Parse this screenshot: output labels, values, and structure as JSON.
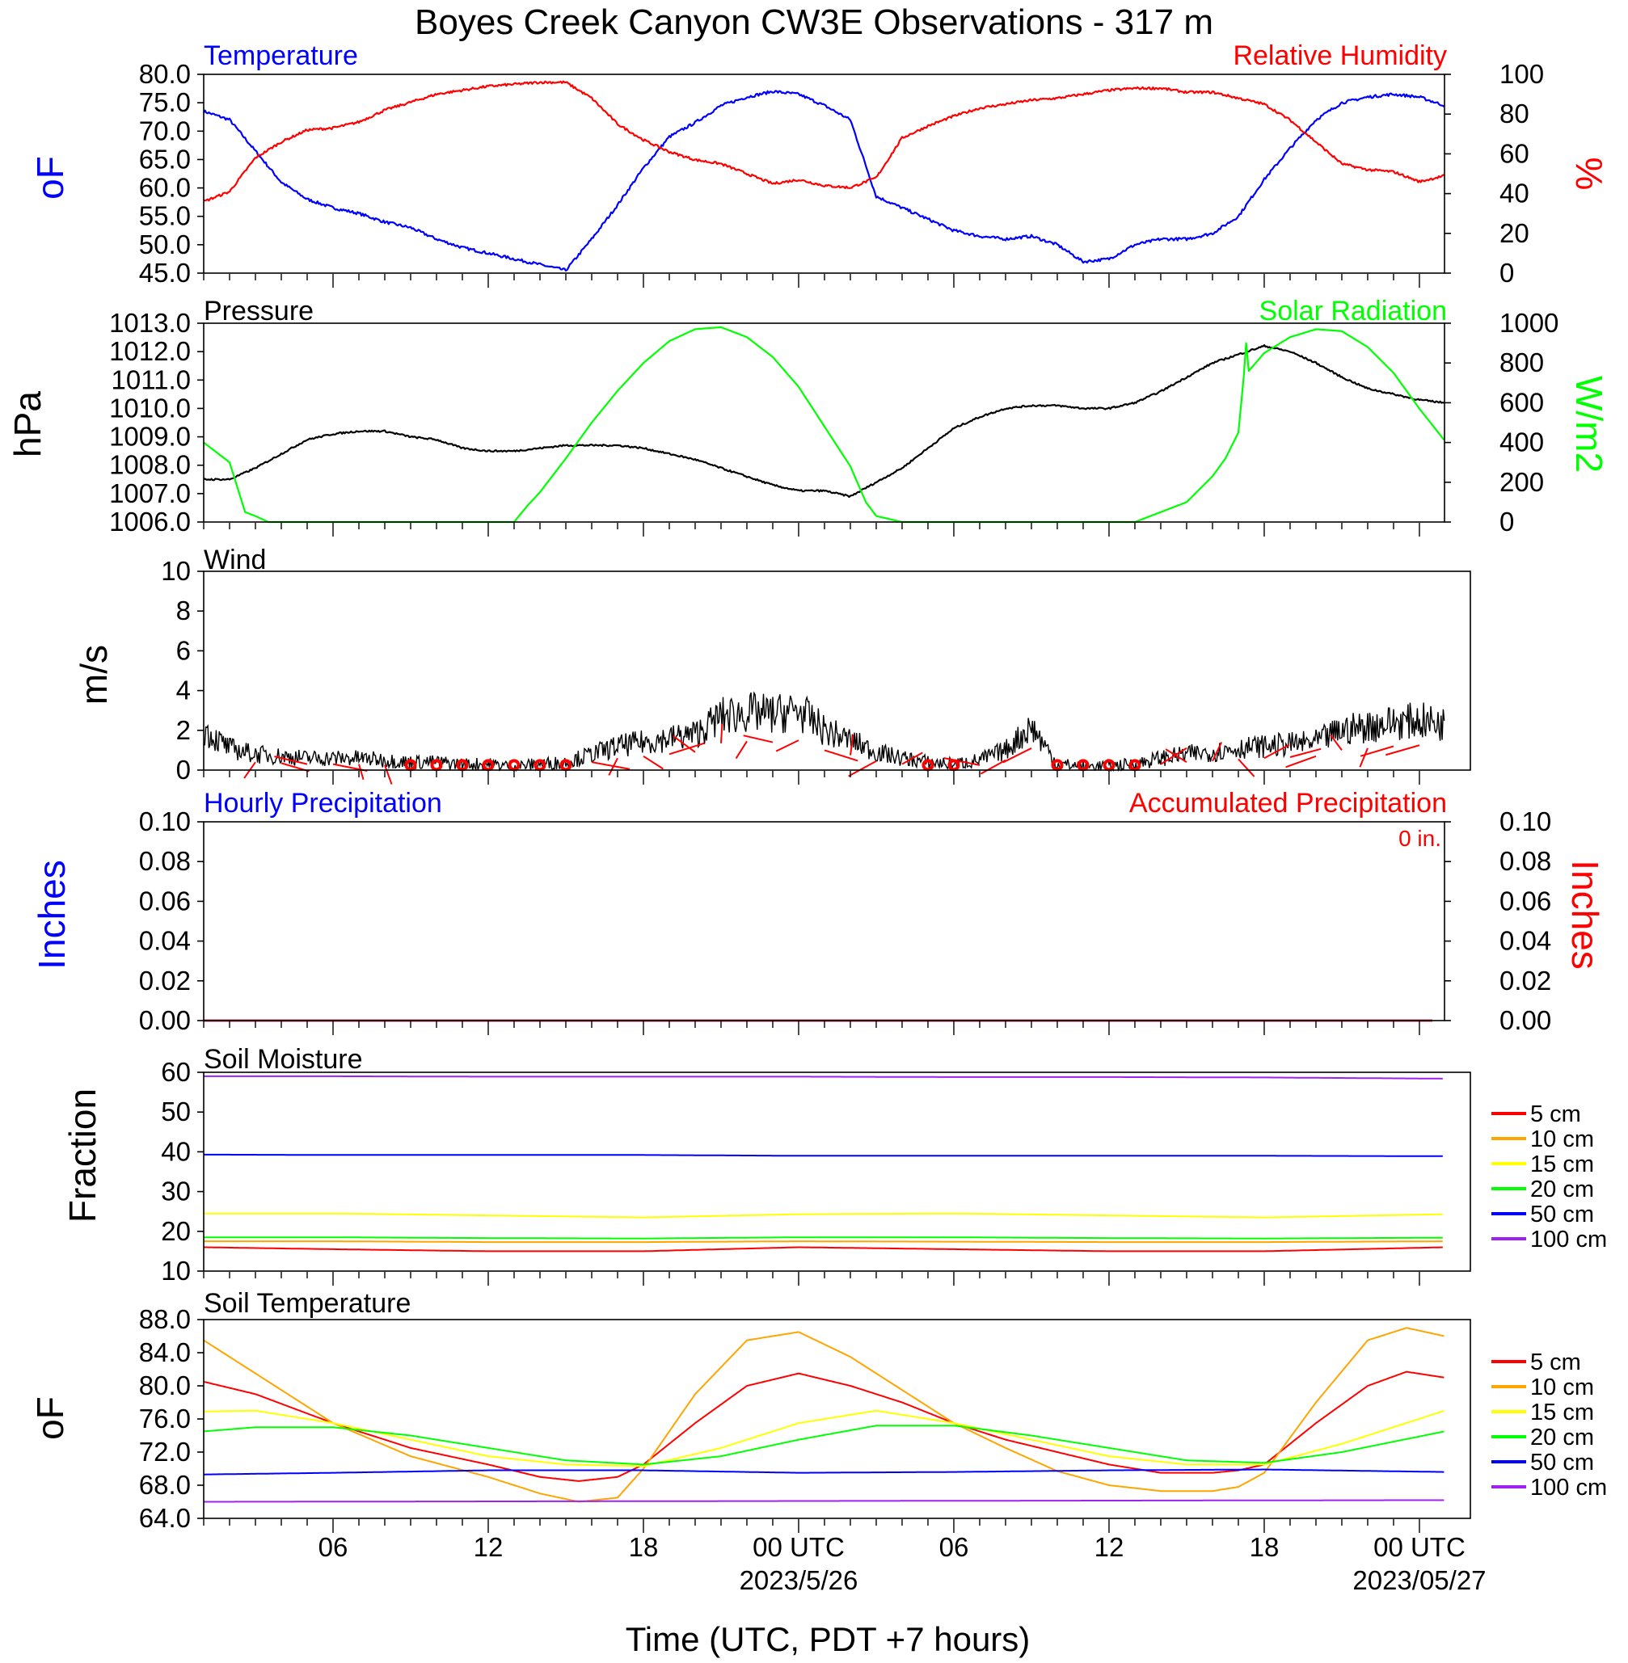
{
  "title": "Boyes Creek Canyon CW3E Observations - 317 m",
  "x_axis": {
    "label": "Time (UTC, PDT +7 hours)",
    "ticks": [
      {
        "hour": 6,
        "label": "06"
      },
      {
        "hour": 12,
        "label": "12"
      },
      {
        "hour": 18,
        "label": "18"
      },
      {
        "hour": 24,
        "label": "00 UTC"
      },
      {
        "hour": 30,
        "label": "06"
      },
      {
        "hour": 36,
        "label": "12"
      },
      {
        "hour": 42,
        "label": "18"
      },
      {
        "hour": 48,
        "label": "00 UTC"
      }
    ],
    "date_labels": [
      {
        "hour": 24,
        "label": "2023/5/26"
      },
      {
        "hour": 48,
        "label": "2023/05/27"
      }
    ],
    "range_hours": [
      1,
      48.97
    ]
  },
  "panels": {
    "temp_rh": {
      "left_title": "Temperature",
      "right_title": "Relative Humidity",
      "left_unit": "oF",
      "right_unit": "%",
      "left_ticks": [
        "80.0",
        "75.0",
        "70.0",
        "65.0",
        "60.0",
        "55.0",
        "50.0",
        "45.0"
      ],
      "right_ticks": [
        "100",
        "80",
        "60",
        "40",
        "20",
        "0"
      ]
    },
    "pressure_solar": {
      "left_title": "Pressure",
      "right_title": "Solar Radiation",
      "left_unit": "hPa",
      "right_unit": "W/m2",
      "left_ticks": [
        "1013.0",
        "1012.0",
        "1011.0",
        "1010.0",
        "1009.0",
        "1008.0",
        "1007.0",
        "1006.0"
      ],
      "right_ticks": [
        "1000",
        "800",
        "600",
        "400",
        "200",
        "0"
      ]
    },
    "wind": {
      "title": "Wind",
      "unit": "m/s",
      "ticks": [
        "10",
        "8",
        "6",
        "4",
        "2",
        "0"
      ]
    },
    "precip": {
      "left_title": "Hourly Precipitation",
      "right_title": "Accumulated Precipitation",
      "total": "0 in.",
      "left_unit": "Inches",
      "right_unit": "Inches",
      "ticks": [
        "0.10",
        "0.08",
        "0.06",
        "0.04",
        "0.02",
        "0.00"
      ]
    },
    "soil_moisture": {
      "title": "Soil Moisture",
      "unit": "Fraction",
      "ticks": [
        "60",
        "50",
        "40",
        "30",
        "20",
        "10"
      ],
      "legend": [
        "5 cm",
        "10 cm",
        "15 cm",
        "20 cm",
        "50 cm",
        "100 cm"
      ]
    },
    "soil_temp": {
      "title": "Soil Temperature",
      "unit": "oF",
      "ticks": [
        "88.0",
        "84.0",
        "80.0",
        "76.0",
        "72.0",
        "68.0",
        "64.0"
      ],
      "legend": [
        "5 cm",
        "10 cm",
        "15 cm",
        "20 cm",
        "50 cm",
        "100 cm"
      ]
    }
  },
  "colors": {
    "temperature": "#0000ff",
    "relative_humidity": "#ff0000",
    "pressure": "#000000",
    "solar": "#00ff00",
    "wind": "#000000",
    "wind_barbs": "#ff0000",
    "hourly_precip": "#0000ff",
    "accum_precip": "#ff0000",
    "depths": [
      "#ff0000",
      "#ffa500",
      "#ffff00",
      "#00ff00",
      "#0000ff",
      "#a020f0"
    ]
  },
  "chart_data": [
    {
      "type": "line",
      "title": "Temperature",
      "ylabel": "oF",
      "ylim": [
        45,
        80
      ],
      "x_unit": "hours from 2023/5/25 00 UTC",
      "series": [
        {
          "name": "Temperature",
          "x": [
            1,
            2,
            3,
            4,
            5,
            6,
            7,
            8,
            9,
            10,
            11,
            12,
            13,
            14,
            15,
            16,
            17,
            18,
            19,
            20,
            21,
            22,
            23,
            24,
            25,
            26,
            27,
            28,
            29,
            30,
            31,
            32,
            33,
            34,
            35,
            36,
            37,
            38,
            39,
            40,
            41,
            42,
            43,
            44,
            45,
            46,
            47,
            48,
            48.97
          ],
          "values": [
            73.5,
            72,
            66.5,
            61,
            58,
            56.5,
            55.5,
            54,
            53,
            51,
            49.5,
            48.5,
            47.5,
            46.5,
            45.5,
            51,
            57,
            63.5,
            69,
            71.5,
            74.5,
            76,
            77,
            76.5,
            74.5,
            72,
            58.5,
            56.5,
            54.5,
            52.5,
            51.5,
            51,
            51.5,
            50,
            47,
            47.5,
            50,
            51,
            51,
            52,
            55,
            61.5,
            67,
            72,
            75,
            76,
            76.5,
            76,
            74.5
          ]
        }
      ]
    },
    {
      "type": "line",
      "title": "Relative Humidity",
      "ylabel": "%",
      "ylim": [
        0,
        100
      ],
      "series": [
        {
          "name": "Relative Humidity",
          "x": [
            1,
            2,
            3,
            4,
            5,
            6,
            7,
            8,
            9,
            10,
            11,
            12,
            13,
            14,
            15,
            16,
            17,
            18,
            19,
            20,
            21,
            22,
            23,
            24,
            25,
            26,
            27,
            28,
            29,
            30,
            31,
            32,
            33,
            34,
            35,
            36,
            37,
            38,
            39,
            40,
            41,
            42,
            43,
            44,
            45,
            46,
            47,
            48,
            48.97
          ],
          "values": [
            36,
            41,
            58,
            66,
            72,
            73,
            76,
            82,
            86,
            90,
            92,
            94,
            95,
            96,
            96,
            88,
            75,
            67,
            61,
            57,
            55,
            50,
            45,
            47,
            44,
            43,
            48,
            68,
            74,
            79,
            83,
            85,
            87,
            88,
            90,
            92,
            93,
            93,
            91,
            91,
            88,
            85,
            77,
            66,
            55,
            52,
            51,
            46,
            49
          ]
        }
      ]
    },
    {
      "type": "line",
      "title": "Pressure",
      "ylabel": "hPa",
      "ylim": [
        1006,
        1013
      ],
      "series": [
        {
          "name": "Pressure",
          "x": [
            1,
            2,
            3,
            4,
            5,
            6,
            7,
            8,
            9,
            10,
            11,
            12,
            13,
            14,
            15,
            16,
            17,
            18,
            19,
            20,
            21,
            22,
            23,
            24,
            25,
            26,
            27,
            28,
            29,
            30,
            31,
            32,
            33,
            34,
            35,
            36,
            37,
            38,
            39,
            40,
            41,
            42,
            43,
            44,
            45,
            46,
            47,
            48,
            48.97
          ],
          "values": [
            1007.5,
            1007.5,
            1007.9,
            1008.4,
            1008.9,
            1009.1,
            1009.2,
            1009.2,
            1009.0,
            1008.9,
            1008.6,
            1008.5,
            1008.5,
            1008.6,
            1008.7,
            1008.7,
            1008.7,
            1008.6,
            1008.4,
            1008.2,
            1007.9,
            1007.6,
            1007.3,
            1007.1,
            1007.1,
            1006.9,
            1007.4,
            1007.9,
            1008.6,
            1009.3,
            1009.7,
            1010.0,
            1010.1,
            1010.1,
            1010.0,
            1010.0,
            1010.2,
            1010.6,
            1011.1,
            1011.6,
            1011.9,
            1012.2,
            1012.0,
            1011.6,
            1011.1,
            1010.7,
            1010.5,
            1010.3,
            1010.2
          ]
        }
      ]
    },
    {
      "type": "line",
      "title": "Solar Radiation",
      "ylabel": "W/m2",
      "ylim": [
        0,
        1000
      ],
      "series": [
        {
          "name": "Solar Radiation",
          "x": [
            1,
            2,
            2.6,
            3,
            3.5,
            4,
            12,
            13,
            13.5,
            14,
            15,
            16,
            17,
            18,
            19,
            20,
            21,
            22,
            23,
            24,
            25,
            26,
            26.6,
            27,
            28,
            36,
            37,
            38,
            39,
            40,
            40.5,
            41,
            41.2,
            41.3,
            41.4,
            42,
            43,
            44,
            45,
            46,
            47,
            48,
            48.97
          ],
          "values": [
            400,
            300,
            50,
            30,
            0,
            0,
            0,
            0,
            80,
            150,
            320,
            500,
            660,
            800,
            910,
            970,
            980,
            930,
            830,
            680,
            480,
            280,
            100,
            30,
            0,
            0,
            0,
            50,
            100,
            230,
            320,
            450,
            720,
            900,
            760,
            850,
            930,
            970,
            960,
            880,
            750,
            570,
            410
          ]
        }
      ]
    },
    {
      "type": "line",
      "title": "Wind",
      "ylabel": "m/s",
      "ylim": [
        0,
        10
      ],
      "series": [
        {
          "name": "Wind",
          "x": [
            1,
            2,
            3,
            4,
            5,
            6,
            7,
            8,
            9,
            10,
            11,
            12,
            13,
            14,
            15,
            16,
            17,
            18,
            19,
            20,
            21,
            22,
            23,
            24,
            25,
            26,
            27,
            28,
            29,
            30,
            31,
            32,
            33,
            34,
            35,
            36,
            37,
            38,
            39,
            40,
            41,
            42,
            43,
            44,
            45,
            46,
            47,
            48,
            48.97
          ],
          "values": [
            2,
            1.1,
            0.8,
            0.7,
            0.6,
            0.6,
            0.6,
            0.5,
            0.4,
            0.4,
            0.3,
            0.3,
            0.2,
            0.3,
            0.4,
            0.8,
            1.2,
            1.4,
            1.6,
            1.8,
            2.7,
            2.9,
            2.8,
            3,
            2,
            1.5,
            0.9,
            0.6,
            0.4,
            0.3,
            0.5,
            1,
            2.2,
            0.3,
            0.2,
            0.2,
            0.3,
            0.6,
            0.8,
            0.9,
            1.1,
            1.2,
            1.3,
            1.4,
            2,
            2.2,
            2.4,
            2.5,
            2.3
          ]
        }
      ]
    },
    {
      "type": "line",
      "title": "Hourly Precipitation",
      "ylabel": "Inches",
      "ylim": [
        0,
        0.1
      ],
      "series": [
        {
          "name": "Hourly Precipitation",
          "x": [
            1,
            48.97
          ],
          "values": [
            0,
            0
          ]
        },
        {
          "name": "Accumulated Precipitation",
          "x": [
            1,
            48.97
          ],
          "values": [
            0,
            0
          ]
        }
      ]
    },
    {
      "type": "line",
      "title": "Soil Moisture",
      "ylabel": "Fraction",
      "ylim": [
        10,
        60
      ],
      "series": [
        {
          "name": "5 cm",
          "x": [
            1,
            6,
            12,
            18,
            24,
            30,
            36,
            42,
            48.97
          ],
          "values": [
            16,
            15.5,
            15,
            15,
            16,
            15.5,
            15,
            15,
            16
          ]
        },
        {
          "name": "10 cm",
          "x": [
            1,
            6,
            12,
            18,
            24,
            30,
            36,
            42,
            48.97
          ],
          "values": [
            17.5,
            17.5,
            17.3,
            17.3,
            17.5,
            17.4,
            17.3,
            17.3,
            17.5
          ]
        },
        {
          "name": "15 cm",
          "x": [
            1,
            6,
            12,
            18,
            24,
            30,
            36,
            42,
            48.97
          ],
          "values": [
            24.5,
            24.5,
            24,
            23.5,
            24.3,
            24.5,
            24,
            23.5,
            24.3
          ]
        },
        {
          "name": "20 cm",
          "x": [
            1,
            6,
            12,
            18,
            24,
            30,
            36,
            42,
            48.97
          ],
          "values": [
            18.5,
            18.5,
            18.3,
            18.2,
            18.5,
            18.5,
            18.3,
            18.2,
            18.4
          ]
        },
        {
          "name": "50 cm",
          "x": [
            1,
            6,
            12,
            18,
            24,
            30,
            36,
            42,
            48.97
          ],
          "values": [
            39.3,
            39.2,
            39.2,
            39.2,
            39,
            39,
            39,
            39,
            38.9
          ]
        },
        {
          "name": "100 cm",
          "x": [
            1,
            6,
            12,
            18,
            24,
            30,
            36,
            42,
            48.97
          ],
          "values": [
            59,
            59,
            58.9,
            58.9,
            58.9,
            58.8,
            58.8,
            58.7,
            58.4
          ]
        }
      ]
    },
    {
      "type": "line",
      "title": "Soil Temperature",
      "ylabel": "oF",
      "ylim": [
        64,
        88
      ],
      "series": [
        {
          "name": "5 cm",
          "x": [
            1,
            3,
            6,
            9,
            12,
            14,
            15.5,
            17,
            18,
            20,
            22,
            24,
            26,
            28,
            30,
            32,
            34,
            36,
            38,
            40,
            41,
            42,
            44,
            46,
            47.5,
            48.97
          ],
          "values": [
            80.5,
            79,
            75.5,
            72.5,
            70.5,
            69,
            68.5,
            69,
            70.5,
            75.5,
            80,
            81.5,
            80,
            78,
            75.5,
            73.5,
            72,
            70.5,
            69.5,
            69.5,
            69.8,
            70.5,
            75.5,
            80,
            81.7,
            81
          ]
        },
        {
          "name": "10 cm",
          "x": [
            1,
            3,
            6,
            9,
            12,
            14,
            15.5,
            17,
            18,
            20,
            22,
            24,
            26,
            28,
            30,
            32,
            34,
            36,
            38,
            40,
            41,
            42,
            44,
            46,
            47.5,
            48.97
          ],
          "values": [
            85.5,
            81.5,
            75.5,
            71.5,
            69,
            67,
            66,
            66.5,
            70,
            79,
            85.5,
            86.5,
            83.5,
            79.5,
            75.5,
            72.5,
            69.7,
            68,
            67.3,
            67.3,
            67.8,
            69.5,
            78,
            85.5,
            87,
            86
          ]
        },
        {
          "name": "15 cm",
          "x": [
            1,
            3,
            6,
            9,
            12,
            15,
            18,
            21,
            24,
            27,
            30,
            33,
            36,
            39,
            42,
            45,
            48.97
          ],
          "values": [
            76.9,
            77,
            75.5,
            73.5,
            71.5,
            70.5,
            70.3,
            72.5,
            75.5,
            77,
            75.5,
            73.5,
            71.5,
            70.5,
            70.5,
            73,
            77
          ]
        },
        {
          "name": "20 cm",
          "x": [
            1,
            3,
            6,
            9,
            12,
            15,
            18,
            21,
            24,
            27,
            30,
            33,
            36,
            39,
            42,
            45,
            48.97
          ],
          "values": [
            74.5,
            75,
            75,
            74,
            72.5,
            71,
            70.5,
            71.5,
            73.5,
            75.2,
            75.2,
            74,
            72.5,
            71,
            70.7,
            72,
            74.5
          ]
        },
        {
          "name": "50 cm",
          "x": [
            1,
            6,
            12,
            18,
            24,
            30,
            36,
            42,
            48.97
          ],
          "values": [
            69.3,
            69.5,
            69.8,
            69.8,
            69.5,
            69.6,
            69.8,
            69.9,
            69.6
          ]
        },
        {
          "name": "100 cm",
          "x": [
            1,
            48.97
          ],
          "values": [
            66,
            66.2
          ]
        }
      ]
    }
  ]
}
